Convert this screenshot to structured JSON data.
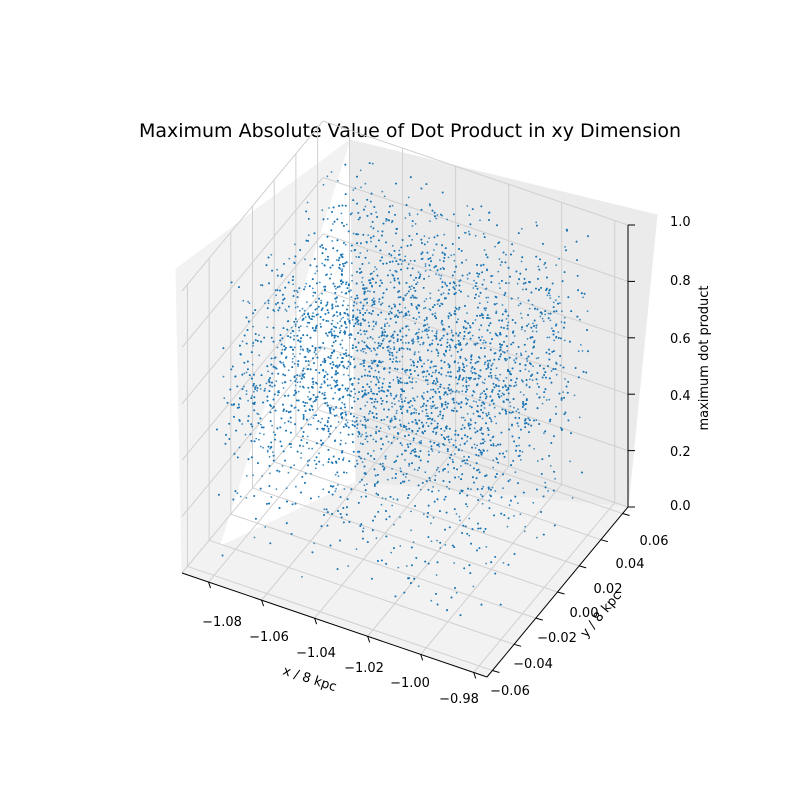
{
  "chart_data": {
    "type": "scatter",
    "title": "Maximum Absolute Value of Dot Product in xy Dimension",
    "xlabel": "x / 8 kpc",
    "ylabel": "y / 8 kpc",
    "zlabel": "maximum dot product",
    "x_ticks": [
      "−1.08",
      "−1.06",
      "−1.04",
      "−1.02",
      "−1.00",
      "−0.98"
    ],
    "y_ticks": [
      "−0.06",
      "−0.04",
      "−0.02",
      "0.00",
      "0.02",
      "0.04",
      "0.06"
    ],
    "z_ticks": [
      "0.0",
      "0.2",
      "0.4",
      "0.6",
      "0.8",
      "1.0"
    ],
    "xlim": [
      -1.09,
      -0.975
    ],
    "ylim": [
      -0.065,
      0.065
    ],
    "zlim": [
      0.0,
      1.0
    ],
    "grid": true,
    "marker_color": "#1f77b4",
    "series": [
      {
        "n_points": 10000,
        "x_range": [
          -1.08,
          -0.985
        ],
        "y_range": [
          -0.06,
          0.06
        ],
        "z_distribution": "concentrated between 0.4 and 0.9, sparse below 0.3"
      }
    ]
  }
}
